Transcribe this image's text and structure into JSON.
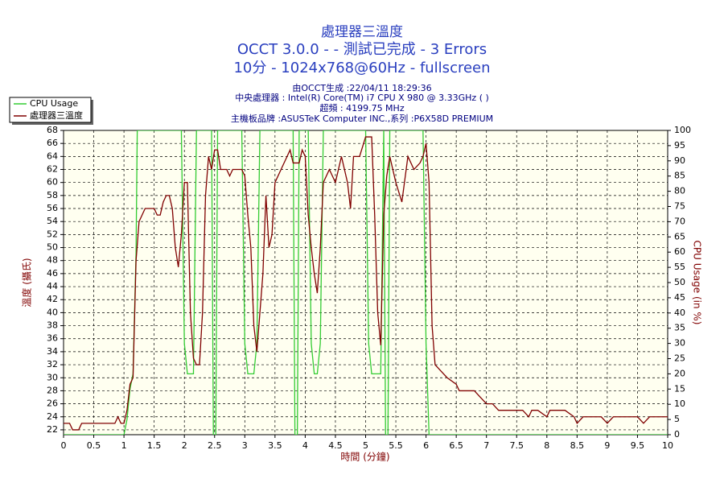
{
  "chart_data": {
    "type": "line",
    "title": "處理器三溫度",
    "subtitle": [
      "OCCT 3.0.0 -  - 測試已完成 - 3 Errors",
      "10分 - 1024x768@60Hz - fullscreen"
    ],
    "info": [
      "由OCCT生成 :22/04/11 18:29:36",
      "中央處理器 : Intel(R) Core(TM) i7 CPU X 980 @ 3.33GHz (  )",
      "超頻 : 4199.75 MHz",
      "主機板品牌 :ASUSTeK Computer INC.,系列 :P6X58D PREMIUM"
    ],
    "x_label": "時間 (分鐘)",
    "y_label": "溫度 (攝氏)",
    "y2_label": "CPU Usage (in %)",
    "xlim": [
      0,
      10
    ],
    "xticks": [
      0,
      0.5,
      1,
      1.5,
      2,
      2.5,
      3,
      3.5,
      4,
      4.5,
      5,
      5.5,
      6,
      6.5,
      7,
      7.5,
      8,
      8.5,
      9,
      9.5,
      10
    ],
    "ylim": [
      21.25,
      68
    ],
    "yticks": [
      22,
      24,
      26,
      28,
      30,
      32,
      34,
      36,
      38,
      40,
      42,
      44,
      46,
      48,
      50,
      52,
      54,
      56,
      58,
      60,
      62,
      64,
      66,
      68
    ],
    "y2lim": [
      0,
      100
    ],
    "y2ticks": [
      0,
      5,
      10,
      15,
      20,
      25,
      30,
      35,
      40,
      45,
      50,
      55,
      60,
      65,
      70,
      75,
      80,
      85,
      90,
      95,
      100
    ],
    "grid": true,
    "legend": "top-left",
    "series": [
      {
        "name": "CPU Usage",
        "color": "#33cc33",
        "axis": "y2",
        "x": [
          0,
          1.0,
          1.05,
          1.1,
          1.15,
          1.2,
          1.22,
          1.95,
          2.0,
          2.05,
          2.15,
          2.2,
          2.45,
          2.48,
          2.52,
          2.55,
          2.95,
          3.0,
          3.05,
          3.15,
          3.2,
          3.25,
          3.8,
          3.83,
          3.87,
          3.9,
          4.05,
          4.1,
          4.15,
          4.2,
          4.25,
          4.3,
          5.0,
          5.05,
          5.1,
          5.25,
          5.3,
          5.33,
          5.37,
          5.4,
          5.95,
          6.0,
          6.05,
          10
        ],
        "values": [
          0,
          0,
          5,
          15,
          20,
          60,
          100,
          100,
          30,
          20,
          20,
          100,
          100,
          0,
          0,
          100,
          100,
          30,
          20,
          20,
          30,
          100,
          100,
          0,
          0,
          100,
          100,
          30,
          20,
          20,
          30,
          100,
          100,
          30,
          20,
          20,
          100,
          0,
          0,
          100,
          100,
          30,
          0,
          0
        ]
      },
      {
        "name": "處理器三溫度",
        "color": "#800000",
        "x": [
          0,
          0.1,
          0.15,
          0.25,
          0.3,
          0.85,
          0.9,
          0.95,
          1.0,
          1.05,
          1.1,
          1.15,
          1.2,
          1.25,
          1.3,
          1.35,
          1.5,
          1.55,
          1.6,
          1.65,
          1.7,
          1.75,
          1.8,
          1.85,
          1.9,
          1.95,
          2.0,
          2.05,
          2.1,
          2.15,
          2.2,
          2.25,
          2.3,
          2.35,
          2.4,
          2.45,
          2.5,
          2.55,
          2.6,
          2.7,
          2.75,
          2.8,
          2.95,
          3.0,
          3.05,
          3.1,
          3.15,
          3.2,
          3.25,
          3.3,
          3.35,
          3.4,
          3.45,
          3.5,
          3.6,
          3.7,
          3.75,
          3.8,
          3.9,
          3.95,
          4.0,
          4.05,
          4.1,
          4.15,
          4.2,
          4.25,
          4.3,
          4.4,
          4.5,
          4.6,
          4.7,
          4.75,
          4.8,
          4.9,
          5.0,
          5.1,
          5.15,
          5.2,
          5.25,
          5.3,
          5.35,
          5.4,
          5.5,
          5.6,
          5.7,
          5.8,
          5.9,
          5.95,
          6.0,
          6.05,
          6.1,
          6.15,
          6.25,
          6.35,
          6.5,
          6.55,
          6.8,
          6.9,
          7.0,
          7.1,
          7.2,
          7.6,
          7.7,
          7.75,
          7.85,
          8.0,
          8.05,
          8.3,
          8.45,
          8.5,
          8.6,
          8.9,
          9.0,
          9.1,
          9.5,
          9.6,
          9.7,
          10
        ],
        "values": [
          23,
          23,
          22,
          22,
          23,
          23,
          24,
          23,
          23,
          25,
          29,
          30,
          48,
          54,
          55,
          56,
          56,
          55,
          55,
          57,
          58,
          58,
          56,
          50,
          47,
          52,
          60,
          60,
          40,
          33,
          32,
          32,
          40,
          58,
          64,
          62,
          65,
          65,
          62,
          62,
          61,
          62,
          62,
          61,
          55,
          50,
          38,
          34,
          40,
          46,
          58,
          50,
          52,
          60,
          62,
          64,
          65,
          63,
          63,
          65,
          64,
          55,
          50,
          46,
          43,
          50,
          60,
          62,
          60,
          64,
          60,
          56,
          64,
          64,
          67,
          67,
          55,
          40,
          35,
          55,
          61,
          64,
          60,
          57,
          64,
          62,
          63,
          64,
          66,
          60,
          38,
          32,
          31,
          30,
          29,
          28,
          28,
          27,
          26,
          26,
          25,
          25,
          24,
          25,
          25,
          24,
          25,
          25,
          24,
          23,
          24,
          24,
          23,
          24,
          24,
          23,
          24,
          24
        ]
      }
    ]
  }
}
